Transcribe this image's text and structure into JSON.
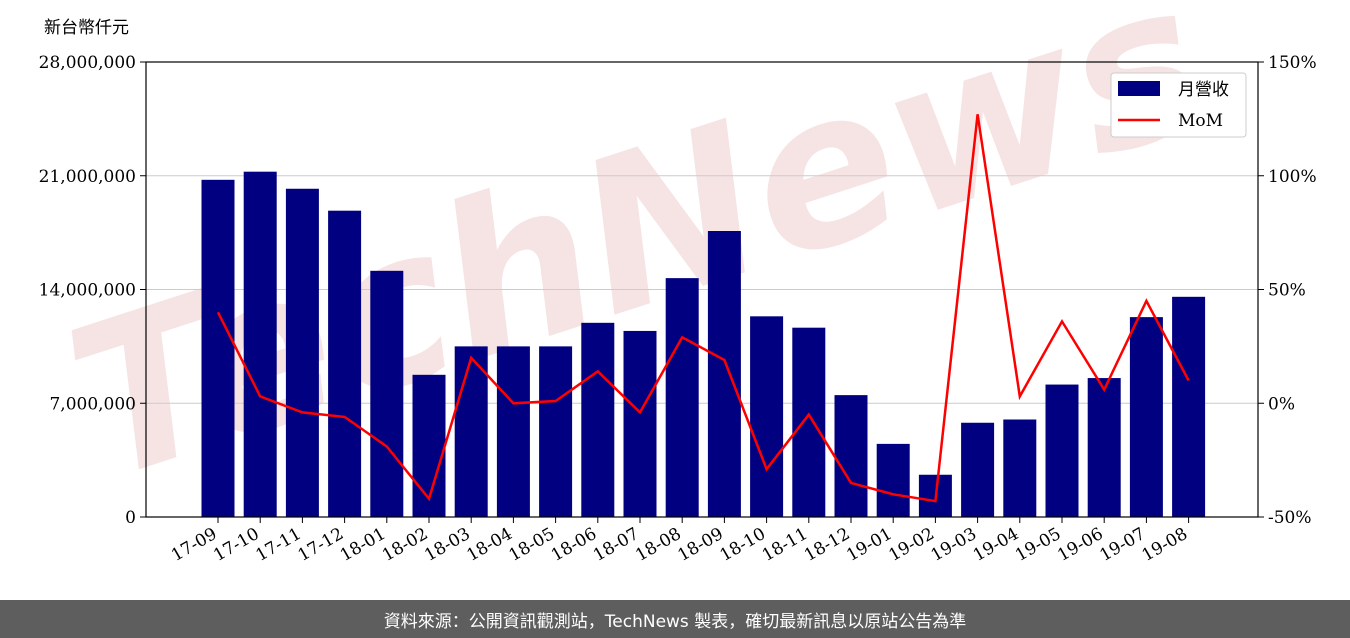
{
  "footer": {
    "source": "資料來源：公開資訊觀測站，TechNews 製表，確切最新訊息以原站公告為準"
  },
  "watermark": "TechNews",
  "colors": {
    "bar": "#000080",
    "line": "#ff0000",
    "grid": "#cccccc",
    "footer_bg": "#5e5e5e",
    "watermark": "#f3dcdc"
  },
  "chart_data": {
    "type": "bar+line",
    "ylabel": "新台幣仟元",
    "categories": [
      "17-09",
      "17-10",
      "17-11",
      "17-12",
      "18-01",
      "18-02",
      "18-03",
      "18-04",
      "18-05",
      "18-06",
      "18-07",
      "18-08",
      "18-09",
      "18-10",
      "18-11",
      "18-12",
      "19-01",
      "19-02",
      "19-03",
      "19-04",
      "19-05",
      "19-06",
      "19-07",
      "19-08"
    ],
    "series": [
      {
        "name": "月營收",
        "kind": "bar",
        "axis": "left",
        "values": [
          20750000,
          21250000,
          20200000,
          18850000,
          15150000,
          8750000,
          10500000,
          10500000,
          10500000,
          11950000,
          11450000,
          14700000,
          17600000,
          12350000,
          11650000,
          7500000,
          4500000,
          2600000,
          5800000,
          6000000,
          8150000,
          8550000,
          12300000,
          13550000
        ]
      },
      {
        "name": "MoM",
        "kind": "line",
        "axis": "right",
        "values": [
          40,
          3,
          -4,
          -6,
          -19,
          -42,
          20,
          0,
          1,
          14,
          -4,
          29,
          19,
          -29,
          -5,
          -35,
          -40,
          -43,
          127,
          3,
          36,
          6,
          45,
          10
        ]
      }
    ],
    "left_axis": {
      "min": 0,
      "max": 28000000,
      "ticks": [
        0,
        7000000,
        14000000,
        21000000,
        28000000
      ],
      "tick_labels": [
        "0",
        "7,000,000",
        "14,000,000",
        "21,000,000",
        "28,000,000"
      ]
    },
    "right_axis": {
      "min": -50,
      "max": 150,
      "ticks": [
        -50,
        0,
        50,
        100,
        150
      ],
      "tick_labels": [
        "-50%",
        "0%",
        "50%",
        "100%",
        "150%"
      ]
    },
    "grid": true,
    "legend": {
      "placement": "top-right",
      "entries": [
        "月營收",
        "MoM"
      ]
    }
  }
}
